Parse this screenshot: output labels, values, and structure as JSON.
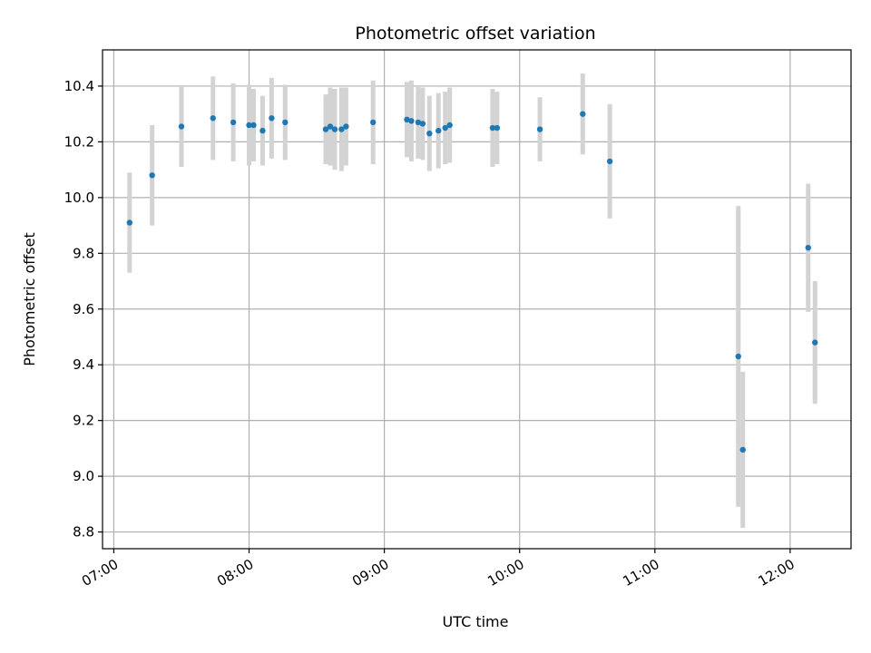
{
  "chart_data": {
    "type": "scatter",
    "title": "Photometric offset variation",
    "xlabel": "UTC time",
    "ylabel": "Photometric offset",
    "x_ticks": [
      "07:00",
      "08:00",
      "09:00",
      "10:00",
      "11:00",
      "12:00"
    ],
    "y_ticks": [
      "8.8",
      "9.0",
      "9.2",
      "9.4",
      "9.6",
      "9.8",
      "10.0",
      "10.2",
      "10.4"
    ],
    "xlim": [
      "06:55",
      "12:27"
    ],
    "ylim": [
      8.74,
      10.53
    ],
    "grid": true,
    "marker_color": "#1f77b4",
    "errorbar_color": "#d3d3d3",
    "points": [
      {
        "time": "07:07",
        "y": 9.91,
        "err": 0.18
      },
      {
        "time": "07:17",
        "y": 10.08,
        "err": 0.18
      },
      {
        "time": "07:30",
        "y": 10.255,
        "err": 0.145
      },
      {
        "time": "07:44",
        "y": 10.285,
        "err": 0.15
      },
      {
        "time": "07:53",
        "y": 10.27,
        "err": 0.14
      },
      {
        "time": "08:00",
        "y": 10.26,
        "err": 0.145
      },
      {
        "time": "08:02",
        "y": 10.26,
        "err": 0.13
      },
      {
        "time": "08:06",
        "y": 10.24,
        "err": 0.125
      },
      {
        "time": "08:10",
        "y": 10.285,
        "err": 0.145
      },
      {
        "time": "08:16",
        "y": 10.27,
        "err": 0.135
      },
      {
        "time": "08:34",
        "y": 10.245,
        "err": 0.125
      },
      {
        "time": "08:36",
        "y": 10.255,
        "err": 0.14
      },
      {
        "time": "08:38",
        "y": 10.245,
        "err": 0.145
      },
      {
        "time": "08:41",
        "y": 10.245,
        "err": 0.15
      },
      {
        "time": "08:43",
        "y": 10.255,
        "err": 0.14
      },
      {
        "time": "08:55",
        "y": 10.27,
        "err": 0.15
      },
      {
        "time": "09:10",
        "y": 10.28,
        "err": 0.135
      },
      {
        "time": "09:12",
        "y": 10.275,
        "err": 0.145
      },
      {
        "time": "09:15",
        "y": 10.27,
        "err": 0.13
      },
      {
        "time": "09:17",
        "y": 10.265,
        "err": 0.13
      },
      {
        "time": "09:20",
        "y": 10.23,
        "err": 0.135
      },
      {
        "time": "09:24",
        "y": 10.24,
        "err": 0.135
      },
      {
        "time": "09:27",
        "y": 10.25,
        "err": 0.13
      },
      {
        "time": "09:29",
        "y": 10.26,
        "err": 0.135
      },
      {
        "time": "09:48",
        "y": 10.25,
        "err": 0.14
      },
      {
        "time": "09:50",
        "y": 10.25,
        "err": 0.13
      },
      {
        "time": "10:09",
        "y": 10.245,
        "err": 0.115
      },
      {
        "time": "10:28",
        "y": 10.3,
        "err": 0.145
      },
      {
        "time": "10:40",
        "y": 10.13,
        "err": 0.205
      },
      {
        "time": "11:37",
        "y": 9.43,
        "err": 0.54
      },
      {
        "time": "11:39",
        "y": 9.095,
        "err": 0.28
      },
      {
        "time": "12:08",
        "y": 9.82,
        "err": 0.23
      },
      {
        "time": "12:11",
        "y": 9.48,
        "err": 0.22
      }
    ]
  }
}
